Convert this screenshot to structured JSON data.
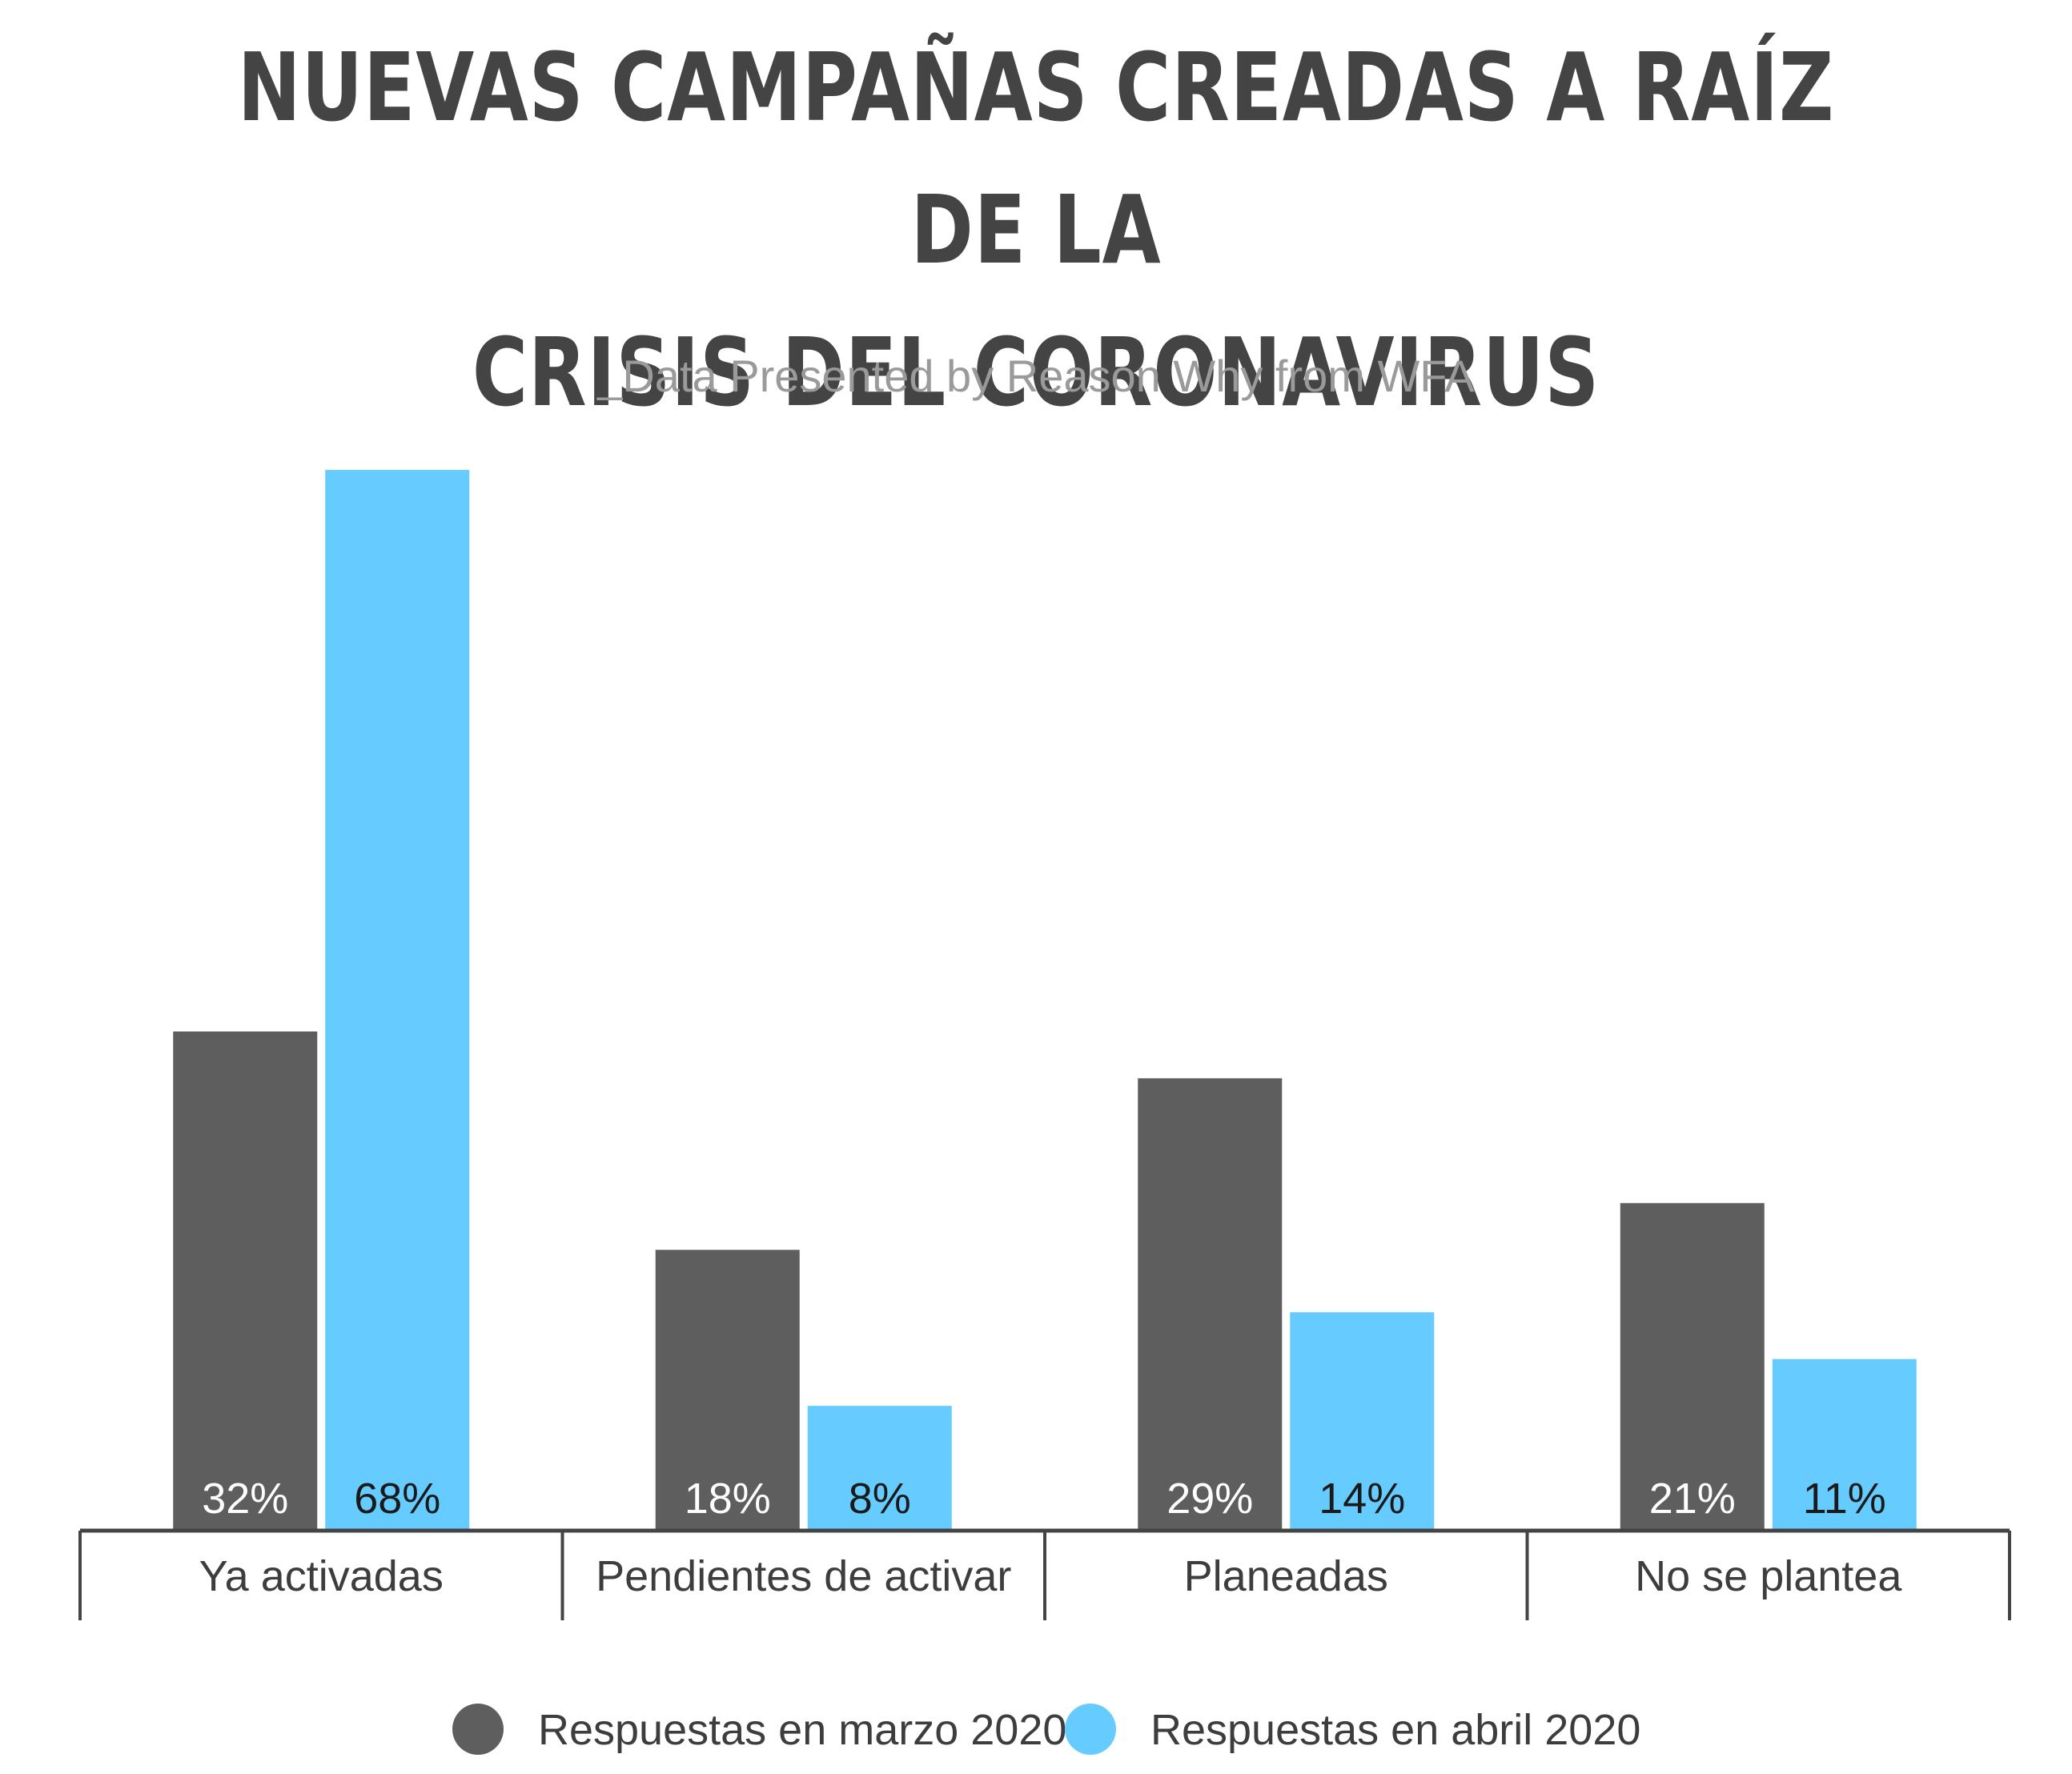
{
  "title_lines": [
    "NUEVAS CAMPAÑAS CREADAS A RAÍZ DE LA",
    "CRISIS DEL CORONAVIRUS"
  ],
  "subtitle": "_Data Presented by Reason Why from WFA",
  "chart_data": {
    "type": "bar",
    "title": "NUEVAS CAMPAÑAS CREADAS A RAÍZ DE LA CRISIS DEL CORONAVIRUS",
    "subtitle": "_Data Presented by Reason Why from WFA",
    "categories": [
      "Ya activadas",
      "Pendientes de activar",
      "Planeadas",
      "No se plantea"
    ],
    "series": [
      {
        "name": "Respuestas en marzo 2020",
        "values": [
          32,
          18,
          29,
          21
        ],
        "labels": [
          "32%",
          "18%",
          "29%",
          "21%"
        ],
        "color": "#5e5e5e",
        "label_color": "#ffffff"
      },
      {
        "name": "Respuestas en abril 2020",
        "values": [
          68,
          8,
          14,
          11
        ],
        "labels": [
          "68%",
          "8%",
          "14%",
          "11%"
        ],
        "color": "#66ccff",
        "label_color": "#1a1a1a"
      }
    ],
    "ylim": [
      0,
      68
    ],
    "grid": false,
    "legend_position": "bottom",
    "xlabel": "",
    "ylabel": ""
  }
}
